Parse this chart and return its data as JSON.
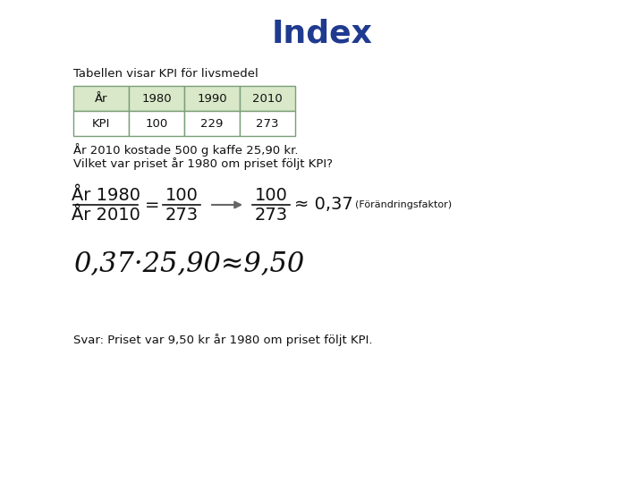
{
  "title": "Index",
  "title_color": "#1F3A8F",
  "title_fontsize": 26,
  "subtitle": "Tabellen visar KPI för livsmedel",
  "subtitle_fontsize": 9.5,
  "table_headers": [
    "År",
    "1980",
    "1990",
    "2010"
  ],
  "table_row": [
    "KPI",
    "100",
    "229",
    "273"
  ],
  "header_bg": "#D9E8C8",
  "row_bg": "#FFFFFF",
  "table_border_color": "#7A9E7A",
  "text1": "År 2010 kostade 500 g kaffe 25,90 kr.",
  "text2": "Vilket var priset år 1980 om priset följt KPI?",
  "text_fontsize": 9.5,
  "formula_fontsize": 14,
  "big_formula_fontsize": 22,
  "answer_text": "Svar: Priset var 9,50 kr år 1980 om priset följt KPI.",
  "answer_fontsize": 9.5,
  "forandring_text": "(Förändringsfaktor)",
  "background_color": "#FFFFFF"
}
